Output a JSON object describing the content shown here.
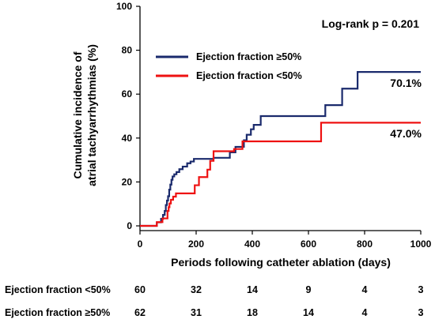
{
  "chart_data": {
    "type": "line",
    "step": true,
    "xlabel": "Periods following catheter ablation (days)",
    "ylabel_lines": [
      "Cumulative incidence of",
      "atrial tachyarrhythmias (%)"
    ],
    "xlim": [
      0,
      1000
    ],
    "ylim": [
      0,
      100
    ],
    "x_ticks": [
      "0",
      "200",
      "400",
      "600",
      "800",
      "1000"
    ],
    "y_ticks": [
      "0",
      "20",
      "40",
      "60",
      "80",
      "100"
    ],
    "grid": false,
    "legend_position": "top-left",
    "annotation": "Log-rank p = 0.201",
    "series": [
      {
        "name": "Ejection fraction ≥50%",
        "color": "#1a2a6c",
        "end_label": "70.1%",
        "x": [
          0,
          60,
          75,
          82,
          88,
          92,
          96,
          100,
          104,
          108,
          112,
          116,
          122,
          130,
          140,
          152,
          168,
          180,
          192,
          210,
          262,
          280,
          320,
          340,
          370,
          380,
          395,
          405,
          430,
          660,
          720,
          775,
          1000
        ],
        "y": [
          0,
          1.6,
          3.2,
          5.0,
          6.8,
          9.5,
          11.5,
          13.5,
          16.5,
          18.8,
          21.0,
          22.5,
          23.5,
          24.5,
          25.8,
          27.0,
          28.5,
          29.3,
          30.5,
          30.5,
          31.0,
          31.0,
          33.5,
          36.0,
          39.0,
          41.5,
          44.0,
          46.0,
          50.0,
          55.0,
          62.5,
          70.1,
          70.1
        ]
      },
      {
        "name": "Ejection fraction <50%",
        "color": "#ee1111",
        "end_label": "47.0%",
        "x": [
          0,
          60,
          80,
          98,
          102,
          105,
          110,
          118,
          128,
          195,
          210,
          240,
          250,
          262,
          302,
          335,
          365,
          645,
          1000
        ],
        "y": [
          0,
          1.7,
          3.4,
          6.8,
          8.5,
          10.2,
          11.9,
          13.3,
          14.8,
          18.5,
          22.2,
          25.6,
          29.6,
          34.0,
          34.0,
          35.0,
          38.5,
          47.0,
          47.0
        ]
      }
    ],
    "risk_table": {
      "rows": [
        {
          "label": "Ejection fraction <50%",
          "values": [
            "60",
            "32",
            "14",
            "9",
            "4",
            "3"
          ]
        },
        {
          "label": "Ejection fraction ≥50%",
          "values": [
            "62",
            "31",
            "18",
            "14",
            "4",
            "3"
          ]
        }
      ],
      "x_at": [
        0,
        200,
        400,
        600,
        800,
        1000
      ]
    }
  }
}
